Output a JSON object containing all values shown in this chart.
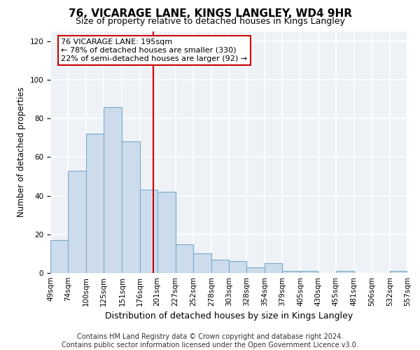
{
  "title": "76, VICARAGE LANE, KINGS LANGLEY, WD4 9HR",
  "subtitle": "Size of property relative to detached houses in Kings Langley",
  "xlabel": "Distribution of detached houses by size in Kings Langley",
  "ylabel": "Number of detached properties",
  "bin_edges": [
    49,
    74,
    100,
    125,
    151,
    176,
    201,
    227,
    252,
    278,
    303,
    328,
    354,
    379,
    405,
    430,
    455,
    481,
    506,
    532,
    557
  ],
  "bar_heights": [
    17,
    53,
    72,
    86,
    68,
    43,
    42,
    15,
    10,
    7,
    6,
    3,
    5,
    1,
    1,
    0,
    1,
    0,
    0,
    1
  ],
  "bar_color": "#ccdcec",
  "bar_edge_color": "#7aaaca",
  "vline_x": 195,
  "vline_color": "#cc0000",
  "annotation_text": "76 VICARAGE LANE: 195sqm\n← 78% of detached houses are smaller (330)\n22% of semi-detached houses are larger (92) →",
  "annotation_box_color": "#ffffff",
  "annotation_box_edge": "#cc0000",
  "ylim": [
    0,
    125
  ],
  "yticks": [
    0,
    20,
    40,
    60,
    80,
    100,
    120
  ],
  "footer_line1": "Contains HM Land Registry data © Crown copyright and database right 2024.",
  "footer_line2": "Contains public sector information licensed under the Open Government Licence v3.0.",
  "background_color": "#ffffff",
  "axes_bg_color": "#eef2f7",
  "grid_color": "#ffffff",
  "title_fontsize": 11,
  "subtitle_fontsize": 9,
  "xlabel_fontsize": 9,
  "ylabel_fontsize": 8.5,
  "tick_fontsize": 7.5,
  "footer_fontsize": 7,
  "annotation_fontsize": 8
}
